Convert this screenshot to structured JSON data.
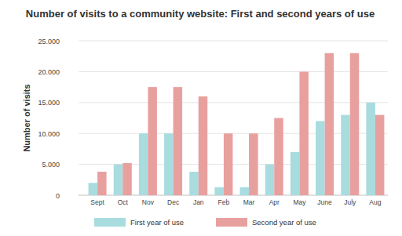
{
  "chart_data": {
    "type": "bar",
    "title": "Number of visits to a community website: First and second years of use",
    "y_label": "Number of visits",
    "categories": [
      "Sept",
      "Oct",
      "Nov",
      "Dec",
      "Jan",
      "Feb",
      "Mar",
      "Apr",
      "May",
      "June",
      "July",
      "Aug"
    ],
    "series": [
      {
        "name": "First year of use",
        "color": "#a8dcdf",
        "values": [
          2000,
          5000,
          10000,
          10000,
          3800,
          1300,
          1300,
          5000,
          7000,
          12000,
          13000,
          15000
        ]
      },
      {
        "name": "Second year of use",
        "color": "#e8a09f",
        "values": [
          3800,
          5200,
          17500,
          17500,
          16000,
          10000,
          10000,
          12500,
          20000,
          23000,
          23000,
          13000
        ]
      }
    ],
    "ylim": [
      0,
      25000
    ],
    "yticks": [
      0,
      {
        "value": 5000,
        "label": "5.000"
      },
      {
        "value": 10000,
        "label": "10.000"
      },
      {
        "value": 15000,
        "label": "15.000"
      },
      {
        "value": 20000,
        "label": "20.000"
      },
      {
        "value": 25000,
        "label": "25.000"
      }
    ],
    "grid": true,
    "legend": "bottom"
  }
}
